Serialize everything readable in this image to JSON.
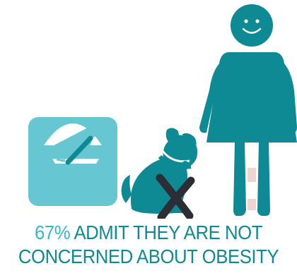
{
  "headline": {
    "percent": "67%",
    "line1_rest": " ADMIT THEY ARE NOT",
    "line2": "CONCERNED ABOUT OBESITY"
  },
  "icons": [
    "scale-icon",
    "dog-icon",
    "cross-icon",
    "woman-icon"
  ],
  "colors": {
    "teal": "#0e8a94",
    "light_teal": "#66c7d2",
    "accent_teal": "#37b9c2",
    "dark": "#2d2d35",
    "pink": "#f1d3d3"
  }
}
